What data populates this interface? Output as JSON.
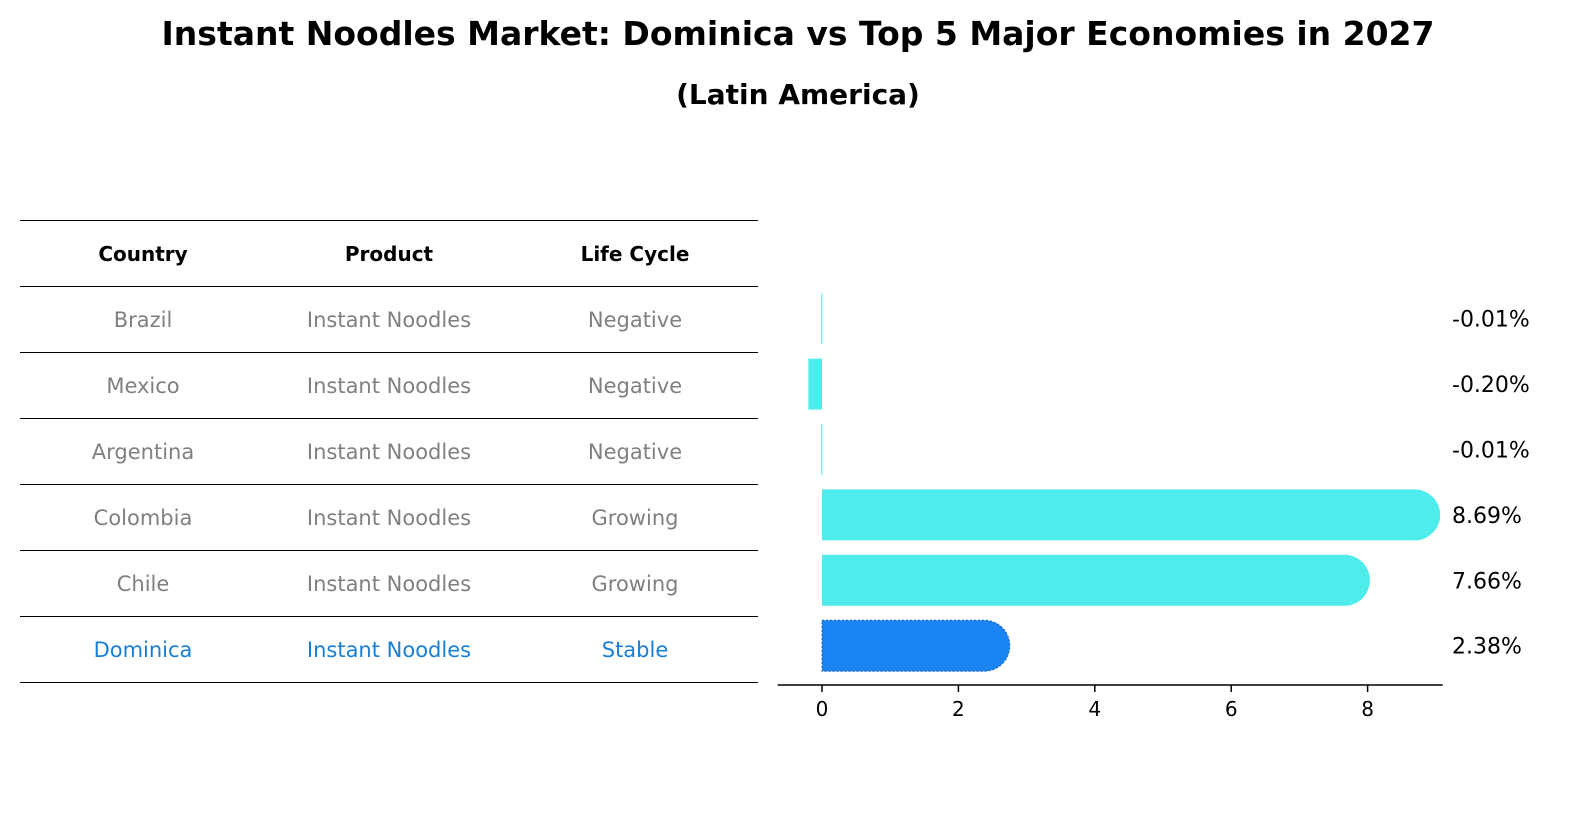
{
  "title": "Instant Noodles Market: Dominica vs Top 5 Major Economies in 2027",
  "subtitle": "(Latin America)",
  "table": {
    "headers": [
      "Country",
      "Product",
      "Life Cycle"
    ],
    "rows": [
      [
        "Brazil",
        "Instant Noodles",
        "Negative"
      ],
      [
        "Mexico",
        "Instant Noodles",
        "Negative"
      ],
      [
        "Argentina",
        "Instant Noodles",
        "Negative"
      ],
      [
        "Colombia",
        "Instant Noodles",
        "Growing"
      ],
      [
        "Chile",
        "Instant Noodles",
        "Growing"
      ],
      [
        "Dominica",
        "Instant Noodles",
        "Stable"
      ]
    ],
    "highlight_row": 5
  },
  "colors": {
    "bar": "#4eedeb",
    "highlight_bar": "#1a84f2",
    "highlight_text": "#1a7fd4",
    "muted_text": "#808080"
  },
  "chart_data": {
    "type": "bar",
    "orientation": "horizontal",
    "categories": [
      "Brazil",
      "Mexico",
      "Argentina",
      "Colombia",
      "Chile",
      "Dominica"
    ],
    "values": [
      -0.01,
      -0.2,
      -0.01,
      8.69,
      7.66,
      2.38
    ],
    "value_labels": [
      "-0.01%",
      "-0.20%",
      "-0.01%",
      "8.69%",
      "7.66%",
      "2.38%"
    ],
    "highlight_category": "Dominica",
    "xticks": [
      "0",
      "2",
      "4",
      "6",
      "8"
    ],
    "xtick_values": [
      0,
      2,
      4,
      6,
      8
    ],
    "xlim": [
      -0.65,
      9.1
    ],
    "grid": false
  }
}
